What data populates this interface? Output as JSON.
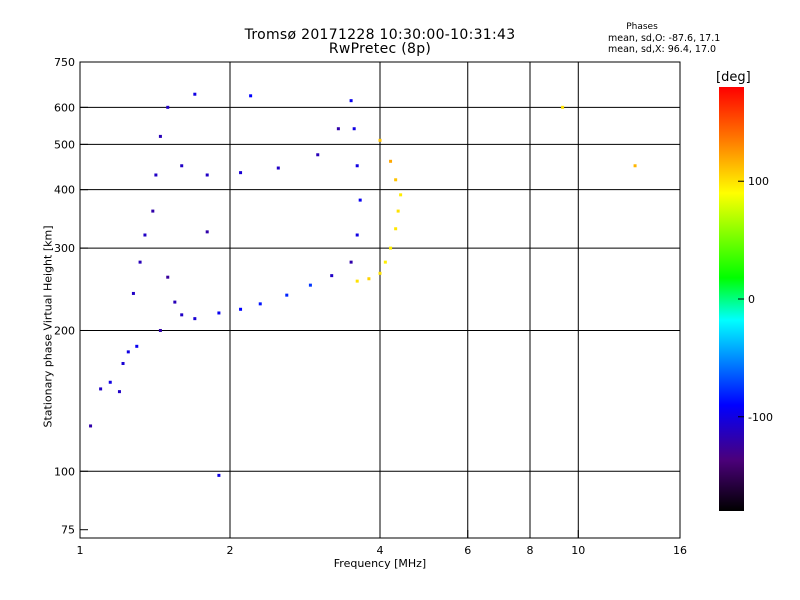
{
  "chart_data": {
    "type": "scatter",
    "title": "Tromsø 20171228 10:30:00-10:31:43",
    "subtitle": "RwPretec (8p)",
    "phases": {
      "heading": "Phases",
      "o_line": "mean, sd,O: -87.6, 17.1",
      "x_line": "mean, sd,X:  96.4, 17.0"
    },
    "xlabel": "Frequency [MHz]",
    "ylabel": "Stationary phase Virtual Height [km]",
    "x_scale": "log",
    "y_scale": "log",
    "xlim": [
      1,
      16
    ],
    "ylim": [
      72,
      750
    ],
    "x_ticks": [
      1,
      2,
      4,
      6,
      8,
      10,
      16
    ],
    "y_ticks": [
      75,
      100,
      200,
      300,
      400,
      500,
      600,
      750
    ],
    "x_grid": [
      2,
      4,
      6,
      8,
      10
    ],
    "y_grid": [
      100,
      200,
      300,
      400,
      500,
      600
    ],
    "colorbar": {
      "label": "[deg]",
      "range": [
        -180,
        180
      ],
      "ticks": [
        100,
        0,
        -100
      ]
    },
    "series": [
      {
        "mode": "O",
        "points": [
          [
            1.05,
            125,
            -120
          ],
          [
            1.1,
            150,
            -110
          ],
          [
            1.15,
            155,
            -100
          ],
          [
            1.2,
            148,
            -110
          ],
          [
            1.22,
            170,
            -105
          ],
          [
            1.25,
            180,
            -100
          ],
          [
            1.3,
            185,
            -95
          ],
          [
            1.28,
            240,
            -110
          ],
          [
            1.32,
            280,
            -115
          ],
          [
            1.35,
            320,
            -110
          ],
          [
            1.4,
            360,
            -120
          ],
          [
            1.42,
            430,
            -110
          ],
          [
            1.45,
            520,
            -115
          ],
          [
            1.5,
            600,
            -110
          ],
          [
            1.5,
            260,
            -125
          ],
          [
            1.55,
            230,
            -115
          ],
          [
            1.45,
            200,
            -120
          ],
          [
            1.6,
            216,
            -110
          ],
          [
            1.7,
            212,
            -105
          ],
          [
            1.9,
            218,
            -95
          ],
          [
            2.1,
            222,
            -90
          ],
          [
            2.3,
            228,
            -85
          ],
          [
            2.6,
            238,
            -80
          ],
          [
            2.9,
            250,
            -75
          ],
          [
            3.2,
            262,
            -110
          ],
          [
            3.5,
            280,
            -120
          ],
          [
            3.6,
            320,
            -100
          ],
          [
            3.65,
            380,
            -95
          ],
          [
            3.6,
            450,
            -100
          ],
          [
            3.55,
            540,
            -100
          ],
          [
            3.5,
            620,
            -95
          ],
          [
            1.6,
            450,
            -110
          ],
          [
            1.8,
            430,
            -110
          ],
          [
            2.1,
            435,
            -105
          ],
          [
            2.5,
            445,
            -110
          ],
          [
            3.0,
            475,
            -115
          ],
          [
            3.3,
            540,
            -120
          ],
          [
            1.7,
            640,
            -100
          ],
          [
            2.2,
            635,
            -90
          ],
          [
            1.8,
            325,
            -120
          ],
          [
            1.9,
            98,
            -100
          ]
        ]
      },
      {
        "mode": "X",
        "points": [
          [
            3.6,
            255,
            100
          ],
          [
            3.8,
            258,
            105
          ],
          [
            4.0,
            265,
            100
          ],
          [
            4.1,
            280,
            95
          ],
          [
            4.2,
            300,
            95
          ],
          [
            4.3,
            330,
            98
          ],
          [
            4.35,
            360,
            100
          ],
          [
            4.4,
            390,
            96
          ],
          [
            4.3,
            420,
            110
          ],
          [
            4.2,
            460,
            120
          ],
          [
            4.0,
            510,
            110
          ],
          [
            9.3,
            600,
            100
          ],
          [
            13.0,
            450,
            115
          ]
        ]
      }
    ]
  }
}
